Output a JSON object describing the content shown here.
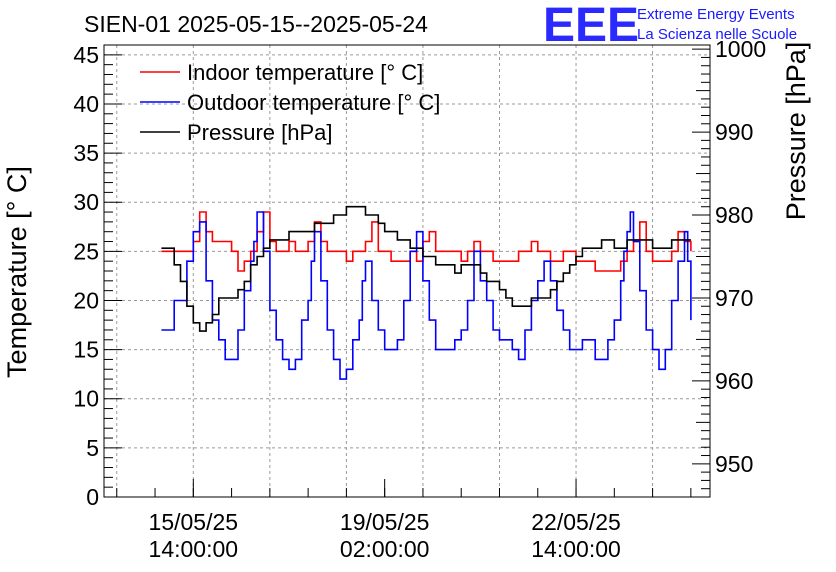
{
  "chart_data": {
    "type": "line",
    "title": "SIEN-01 2025-05-15--2025-05-24",
    "ylabel_left": "Temperature [° C]",
    "ylabel_right": "Pressure [hPa]",
    "ylim_left": [
      0,
      46
    ],
    "ylim_right": [
      946,
      1000.5
    ],
    "xlim_hours": [
      -28,
      162
    ],
    "x_ticks": [
      {
        "hour": 0,
        "line1": "15/05/25",
        "line2": "14:00:00"
      },
      {
        "hour": 60,
        "line1": "19/05/25",
        "line2": "02:00:00"
      },
      {
        "hour": 120,
        "line1": "22/05/25",
        "line2": "14:00:00"
      }
    ],
    "y_ticks_left": [
      0,
      5,
      10,
      15,
      20,
      25,
      30,
      35,
      40,
      45
    ],
    "y_ticks_right": [
      950,
      960,
      970,
      980,
      990,
      1000
    ],
    "x_unit": "hours since 15/05/25 14:00:00",
    "series": [
      {
        "name": "Indoor temperature [° C]",
        "axis": "left",
        "color": "#ff0000",
        "points": [
          [
            -10,
            25
          ],
          [
            -2,
            25
          ],
          [
            0,
            26
          ],
          [
            2,
            29
          ],
          [
            4,
            27
          ],
          [
            6,
            26
          ],
          [
            10,
            26
          ],
          [
            12,
            25
          ],
          [
            14,
            23
          ],
          [
            16,
            24
          ],
          [
            18,
            25
          ],
          [
            20,
            27
          ],
          [
            22,
            29
          ],
          [
            24,
            26
          ],
          [
            26,
            25
          ],
          [
            28,
            25
          ],
          [
            30,
            26
          ],
          [
            32,
            25
          ],
          [
            34,
            25
          ],
          [
            36,
            26
          ],
          [
            38,
            28
          ],
          [
            40,
            26
          ],
          [
            42,
            25
          ],
          [
            44,
            25
          ],
          [
            46,
            25
          ],
          [
            48,
            24
          ],
          [
            50,
            25
          ],
          [
            52,
            25
          ],
          [
            54,
            26
          ],
          [
            56,
            28
          ],
          [
            58,
            25
          ],
          [
            60,
            25
          ],
          [
            62,
            24
          ],
          [
            66,
            24
          ],
          [
            68,
            25
          ],
          [
            70,
            24
          ],
          [
            72,
            26
          ],
          [
            74,
            27
          ],
          [
            76,
            25
          ],
          [
            80,
            25
          ],
          [
            82,
            25
          ],
          [
            84,
            24
          ],
          [
            86,
            25
          ],
          [
            88,
            26
          ],
          [
            90,
            25
          ],
          [
            94,
            24
          ],
          [
            98,
            24
          ],
          [
            102,
            25
          ],
          [
            104,
            25
          ],
          [
            106,
            26
          ],
          [
            108,
            25
          ],
          [
            112,
            24
          ],
          [
            116,
            25
          ],
          [
            118,
            25
          ],
          [
            120,
            24
          ],
          [
            124,
            24
          ],
          [
            126,
            23
          ],
          [
            128,
            23
          ],
          [
            132,
            23
          ],
          [
            134,
            24
          ],
          [
            136,
            25
          ],
          [
            138,
            26
          ],
          [
            140,
            28
          ],
          [
            142,
            25
          ],
          [
            144,
            24
          ],
          [
            148,
            24
          ],
          [
            150,
            25
          ],
          [
            152,
            27
          ],
          [
            154,
            26
          ],
          [
            156,
            25
          ]
        ]
      },
      {
        "name": "Outdoor temperature [° C]",
        "axis": "left",
        "color": "#0000ff",
        "points": [
          [
            -10,
            17
          ],
          [
            -6,
            20
          ],
          [
            -2,
            24
          ],
          [
            0,
            27
          ],
          [
            2,
            28
          ],
          [
            4,
            22
          ],
          [
            6,
            18
          ],
          [
            8,
            16
          ],
          [
            10,
            14
          ],
          [
            12,
            14
          ],
          [
            14,
            17
          ],
          [
            16,
            21
          ],
          [
            18,
            24
          ],
          [
            19,
            26
          ],
          [
            20,
            29
          ],
          [
            22,
            25
          ],
          [
            24,
            19
          ],
          [
            26,
            16
          ],
          [
            28,
            14
          ],
          [
            30,
            13
          ],
          [
            32,
            14
          ],
          [
            34,
            18
          ],
          [
            36,
            20
          ],
          [
            37,
            24
          ],
          [
            38,
            27
          ],
          [
            40,
            22
          ],
          [
            42,
            17
          ],
          [
            44,
            14
          ],
          [
            46,
            12
          ],
          [
            48,
            13
          ],
          [
            50,
            16
          ],
          [
            52,
            18
          ],
          [
            53,
            22
          ],
          [
            54,
            24
          ],
          [
            56,
            20
          ],
          [
            58,
            17
          ],
          [
            60,
            15
          ],
          [
            62,
            15
          ],
          [
            64,
            16
          ],
          [
            66,
            20
          ],
          [
            68,
            25
          ],
          [
            70,
            27
          ],
          [
            72,
            22
          ],
          [
            74,
            18
          ],
          [
            76,
            15
          ],
          [
            78,
            15
          ],
          [
            80,
            15
          ],
          [
            82,
            16
          ],
          [
            84,
            17
          ],
          [
            86,
            20
          ],
          [
            88,
            25
          ],
          [
            90,
            22
          ],
          [
            92,
            20
          ],
          [
            94,
            17
          ],
          [
            96,
            16
          ],
          [
            98,
            16
          ],
          [
            100,
            15
          ],
          [
            102,
            14
          ],
          [
            104,
            17
          ],
          [
            106,
            20
          ],
          [
            108,
            22
          ],
          [
            110,
            24
          ],
          [
            112,
            22
          ],
          [
            114,
            19
          ],
          [
            116,
            17
          ],
          [
            118,
            15
          ],
          [
            120,
            15
          ],
          [
            122,
            16
          ],
          [
            124,
            16
          ],
          [
            126,
            14
          ],
          [
            128,
            14
          ],
          [
            130,
            16
          ],
          [
            132,
            18
          ],
          [
            134,
            22
          ],
          [
            135,
            25
          ],
          [
            136,
            27
          ],
          [
            137,
            29
          ],
          [
            138,
            26
          ],
          [
            140,
            21
          ],
          [
            142,
            17
          ],
          [
            144,
            15
          ],
          [
            146,
            13
          ],
          [
            147,
            13
          ],
          [
            148,
            15
          ],
          [
            150,
            20
          ],
          [
            152,
            24
          ],
          [
            154,
            27
          ],
          [
            155,
            24
          ],
          [
            156,
            18
          ]
        ]
      },
      {
        "name": "Pressure [hPa]",
        "axis": "right",
        "color": "#000000",
        "points": [
          [
            -10,
            976
          ],
          [
            -8,
            976
          ],
          [
            -6,
            974
          ],
          [
            -4,
            972
          ],
          [
            -2,
            969
          ],
          [
            0,
            967
          ],
          [
            2,
            966
          ],
          [
            4,
            967
          ],
          [
            6,
            968
          ],
          [
            8,
            970
          ],
          [
            10,
            970
          ],
          [
            12,
            970
          ],
          [
            14,
            971
          ],
          [
            16,
            972
          ],
          [
            18,
            974
          ],
          [
            20,
            975
          ],
          [
            22,
            976
          ],
          [
            24,
            977
          ],
          [
            26,
            977
          ],
          [
            28,
            977
          ],
          [
            30,
            978
          ],
          [
            32,
            978
          ],
          [
            34,
            978
          ],
          [
            36,
            978
          ],
          [
            38,
            979
          ],
          [
            40,
            979
          ],
          [
            42,
            979
          ],
          [
            44,
            980
          ],
          [
            46,
            980
          ],
          [
            48,
            981
          ],
          [
            50,
            981
          ],
          [
            52,
            981
          ],
          [
            54,
            980
          ],
          [
            56,
            980
          ],
          [
            58,
            979
          ],
          [
            60,
            978
          ],
          [
            62,
            978
          ],
          [
            64,
            977
          ],
          [
            66,
            977
          ],
          [
            68,
            976
          ],
          [
            70,
            976
          ],
          [
            72,
            975
          ],
          [
            74,
            975
          ],
          [
            76,
            974
          ],
          [
            78,
            974
          ],
          [
            80,
            974
          ],
          [
            82,
            973
          ],
          [
            84,
            974
          ],
          [
            86,
            974
          ],
          [
            88,
            974
          ],
          [
            90,
            973
          ],
          [
            92,
            972
          ],
          [
            94,
            972
          ],
          [
            96,
            971
          ],
          [
            98,
            970
          ],
          [
            100,
            969
          ],
          [
            102,
            969
          ],
          [
            104,
            969
          ],
          [
            106,
            970
          ],
          [
            108,
            970
          ],
          [
            110,
            970
          ],
          [
            112,
            971
          ],
          [
            114,
            972
          ],
          [
            116,
            973
          ],
          [
            118,
            974
          ],
          [
            120,
            975
          ],
          [
            122,
            976
          ],
          [
            124,
            976
          ],
          [
            126,
            976
          ],
          [
            128,
            977
          ],
          [
            130,
            977
          ],
          [
            132,
            976
          ],
          [
            134,
            976
          ],
          [
            136,
            977
          ],
          [
            138,
            977
          ],
          [
            140,
            977
          ],
          [
            142,
            977
          ],
          [
            144,
            976
          ],
          [
            146,
            976
          ],
          [
            148,
            976
          ],
          [
            150,
            977
          ],
          [
            152,
            977
          ],
          [
            154,
            977
          ],
          [
            156,
            977
          ]
        ]
      }
    ]
  },
  "logo": {
    "mark": "EEE",
    "line1": "Extreme Energy Events",
    "line2": "La Scienza nelle Scuole"
  }
}
